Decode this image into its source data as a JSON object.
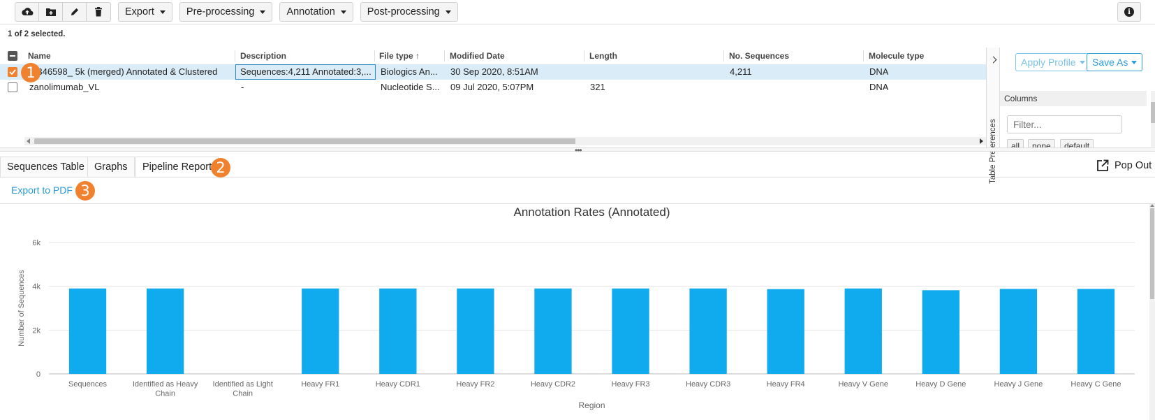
{
  "toolbar": {
    "icons": [
      "upload-icon",
      "folder-add-icon",
      "pencil-icon",
      "trash-icon"
    ],
    "menus": [
      "Export",
      "Pre-processing",
      "Annotation",
      "Post-processing"
    ],
    "info_icon": "i"
  },
  "selection_text": "1 of 2 selected.",
  "table": {
    "headers": [
      "Name",
      "Description",
      "File type",
      "Modified Date",
      "Length",
      "No. Sequences",
      "Molecule type"
    ],
    "sort_column": "File type",
    "sort_indicator": "↑",
    "rows": [
      {
        "selected": true,
        "name": "R346598_ 5k (merged) Annotated & Clustered",
        "description": "Sequences:4,211 Annotated:3,...",
        "file_type": "Biologics An...",
        "modified": "30 Sep 2020, 8:51AM",
        "length": "",
        "sequences": "4,211",
        "molecule": "DNA"
      },
      {
        "selected": false,
        "name": "zanolimumab_VL",
        "description": "-",
        "file_type": "Nucleotide S...",
        "modified": "09 Jul 2020, 5:07PM",
        "length": "321",
        "sequences": "",
        "molecule": "DNA"
      }
    ]
  },
  "side_panel": {
    "tab_label": "Table Preferences",
    "apply_profile": "Apply Profile",
    "save_as": "Save As",
    "columns_label": "Columns",
    "filter_placeholder": "Filter...",
    "mini_buttons": [
      "all",
      "none",
      "default"
    ]
  },
  "tabs": [
    "Sequences Table",
    "Graphs",
    "Pipeline Report"
  ],
  "active_tab": "Pipeline Report",
  "pop_out": "Pop Out",
  "export_pdf": "Export to PDF",
  "badges": [
    "1",
    "2",
    "3"
  ],
  "colors": {
    "accent": "#2b9ad6",
    "bar": "#10aaef",
    "badge": "#f0822f"
  },
  "chart_data": {
    "type": "bar",
    "title": "Annotation Rates (Annotated)",
    "xlabel": "Region",
    "ylabel": "Number of Sequences",
    "ylim": [
      0,
      6000
    ],
    "yticks": [
      "0",
      "2k",
      "4k",
      "6k"
    ],
    "ytick_values": [
      0,
      2000,
      4000,
      6000
    ],
    "grid": true,
    "categories": [
      "Sequences",
      "Identified as Heavy Chain",
      "Identified as Light Chain",
      "Heavy FR1",
      "Heavy CDR1",
      "Heavy FR2",
      "Heavy CDR2",
      "Heavy FR3",
      "Heavy CDR3",
      "Heavy FR4",
      "Heavy V Gene",
      "Heavy D Gene",
      "Heavy J Gene",
      "Heavy C Gene"
    ],
    "values": [
      3900,
      3900,
      0,
      3900,
      3900,
      3900,
      3900,
      3900,
      3900,
      3870,
      3900,
      3820,
      3880,
      3880
    ]
  }
}
